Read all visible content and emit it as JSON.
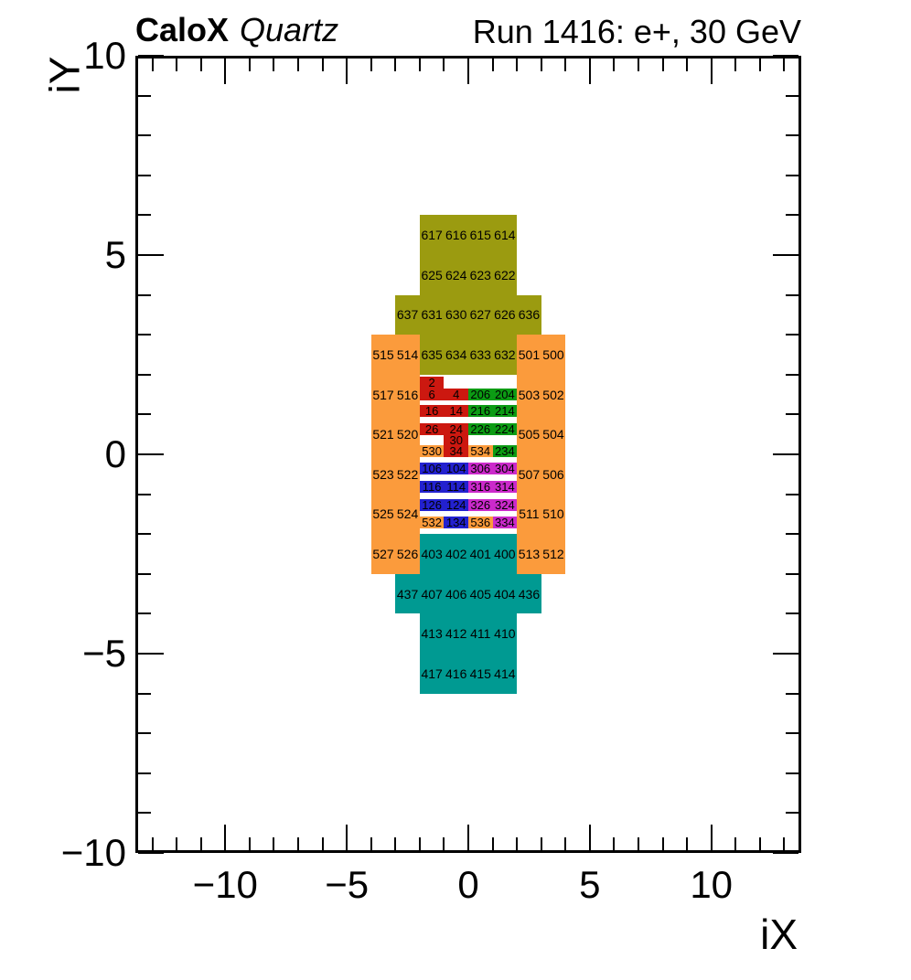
{
  "header": {
    "experiment": "CaloX",
    "detector": "Quartz",
    "run": "Run 1416: e+, 30 GeV"
  },
  "axes": {
    "x_label": "iX",
    "y_label": "iY"
  },
  "chart_data": {
    "type": "heatmap",
    "title": "CaloX Quartz — Run 1416: e+, 30 GeV",
    "xlabel": "iX",
    "ylabel": "iY",
    "xlim": [
      -13.7,
      13.7
    ],
    "ylim": [
      -10,
      10
    ],
    "x_ticks": [
      -10,
      -5,
      0,
      5,
      10
    ],
    "x_tick_labels": [
      "−10",
      "−5",
      "0",
      "5",
      "10"
    ],
    "y_ticks": [
      -10,
      -5,
      0,
      5,
      10
    ],
    "y_tick_labels": [
      "−10",
      "−5",
      "0",
      "5",
      "10"
    ],
    "minor_tick_step": 1,
    "grid": false,
    "palette": {
      "olive": "#9b9b10",
      "orange": "#fb9b3c",
      "teal": "#009a92",
      "red": "#cc1810",
      "green": "#0c9b14",
      "blue": "#2321cf",
      "magenta": "#cb2acb"
    },
    "blocks": [
      {
        "c": "olive",
        "x1": -2,
        "x2": 2,
        "y1": 4,
        "y2": 6
      },
      {
        "c": "olive",
        "x1": -3,
        "x2": 3,
        "y1": 3,
        "y2": 4
      },
      {
        "c": "olive",
        "x1": -2,
        "x2": 2,
        "y1": 2,
        "y2": 3
      },
      {
        "c": "orange",
        "x1": -4,
        "x2": -2,
        "y1": -3,
        "y2": 3
      },
      {
        "c": "orange",
        "x1": 2,
        "x2": 4,
        "y1": -3,
        "y2": 3
      },
      {
        "c": "teal",
        "x1": -2,
        "x2": 2,
        "y1": -3,
        "y2": -2
      },
      {
        "c": "teal",
        "x1": -3,
        "x2": 3,
        "y1": -4,
        "y2": -3
      },
      {
        "c": "teal",
        "x1": -2,
        "x2": 2,
        "y1": -6,
        "y2": -4
      }
    ],
    "block_labels": [
      {
        "x": -1.5,
        "y": 5.5,
        "t": "617"
      },
      {
        "x": -0.5,
        "y": 5.5,
        "t": "616"
      },
      {
        "x": 0.5,
        "y": 5.5,
        "t": "615"
      },
      {
        "x": 1.5,
        "y": 5.5,
        "t": "614"
      },
      {
        "x": -1.5,
        "y": 4.5,
        "t": "625"
      },
      {
        "x": -0.5,
        "y": 4.5,
        "t": "624"
      },
      {
        "x": 0.5,
        "y": 4.5,
        "t": "623"
      },
      {
        "x": 1.5,
        "y": 4.5,
        "t": "622"
      },
      {
        "x": -2.5,
        "y": 3.5,
        "t": "637"
      },
      {
        "x": -1.5,
        "y": 3.5,
        "t": "631"
      },
      {
        "x": -0.5,
        "y": 3.5,
        "t": "630"
      },
      {
        "x": 0.5,
        "y": 3.5,
        "t": "627"
      },
      {
        "x": 1.5,
        "y": 3.5,
        "t": "626"
      },
      {
        "x": 2.5,
        "y": 3.5,
        "t": "636"
      },
      {
        "x": -3.5,
        "y": 2.5,
        "t": "515"
      },
      {
        "x": -2.5,
        "y": 2.5,
        "t": "514"
      },
      {
        "x": -1.5,
        "y": 2.5,
        "t": "635"
      },
      {
        "x": -0.5,
        "y": 2.5,
        "t": "634"
      },
      {
        "x": 0.5,
        "y": 2.5,
        "t": "633"
      },
      {
        "x": 1.5,
        "y": 2.5,
        "t": "632"
      },
      {
        "x": 2.5,
        "y": 2.5,
        "t": "501"
      },
      {
        "x": 3.5,
        "y": 2.5,
        "t": "500"
      },
      {
        "x": -3.5,
        "y": 1.5,
        "t": "517"
      },
      {
        "x": -2.5,
        "y": 1.5,
        "t": "516"
      },
      {
        "x": 2.5,
        "y": 1.5,
        "t": "503"
      },
      {
        "x": 3.5,
        "y": 1.5,
        "t": "502"
      },
      {
        "x": -3.5,
        "y": 0.5,
        "t": "521"
      },
      {
        "x": -2.5,
        "y": 0.5,
        "t": "520"
      },
      {
        "x": 2.5,
        "y": 0.5,
        "t": "505"
      },
      {
        "x": 3.5,
        "y": 0.5,
        "t": "504"
      },
      {
        "x": -3.5,
        "y": -0.5,
        "t": "523"
      },
      {
        "x": -2.5,
        "y": -0.5,
        "t": "522"
      },
      {
        "x": 2.5,
        "y": -0.5,
        "t": "507"
      },
      {
        "x": 3.5,
        "y": -0.5,
        "t": "506"
      },
      {
        "x": -3.5,
        "y": -1.5,
        "t": "525"
      },
      {
        "x": -2.5,
        "y": -1.5,
        "t": "524"
      },
      {
        "x": 2.5,
        "y": -1.5,
        "t": "511"
      },
      {
        "x": 3.5,
        "y": -1.5,
        "t": "510"
      },
      {
        "x": -3.5,
        "y": -2.5,
        "t": "527"
      },
      {
        "x": -2.5,
        "y": -2.5,
        "t": "526"
      },
      {
        "x": -1.5,
        "y": -2.5,
        "t": "403"
      },
      {
        "x": -0.5,
        "y": -2.5,
        "t": "402"
      },
      {
        "x": 0.5,
        "y": -2.5,
        "t": "401"
      },
      {
        "x": 1.5,
        "y": -2.5,
        "t": "400"
      },
      {
        "x": 2.5,
        "y": -2.5,
        "t": "513"
      },
      {
        "x": 3.5,
        "y": -2.5,
        "t": "512"
      },
      {
        "x": -2.5,
        "y": -3.5,
        "t": "437"
      },
      {
        "x": -1.5,
        "y": -3.5,
        "t": "407"
      },
      {
        "x": -0.5,
        "y": -3.5,
        "t": "406"
      },
      {
        "x": 0.5,
        "y": -3.5,
        "t": "405"
      },
      {
        "x": 1.5,
        "y": -3.5,
        "t": "404"
      },
      {
        "x": 2.5,
        "y": -3.5,
        "t": "436"
      },
      {
        "x": -1.5,
        "y": -4.5,
        "t": "413"
      },
      {
        "x": -0.5,
        "y": -4.5,
        "t": "412"
      },
      {
        "x": 0.5,
        "y": -4.5,
        "t": "411"
      },
      {
        "x": 1.5,
        "y": -4.5,
        "t": "410"
      },
      {
        "x": -1.5,
        "y": -5.5,
        "t": "417"
      },
      {
        "x": -0.5,
        "y": -5.5,
        "t": "416"
      },
      {
        "x": 0.5,
        "y": -5.5,
        "t": "415"
      },
      {
        "x": 1.5,
        "y": -5.5,
        "t": "414"
      }
    ],
    "cells": [
      {
        "x1": -2,
        "x2": -1,
        "y1": 1.66,
        "y2": 1.96,
        "c": "red",
        "t": "2"
      },
      {
        "x1": -2,
        "x2": -1,
        "y1": 1.36,
        "y2": 1.66,
        "c": "red",
        "t": "6"
      },
      {
        "x1": -1,
        "x2": 0,
        "y1": 1.36,
        "y2": 1.66,
        "c": "red",
        "t": "4"
      },
      {
        "x1": 0,
        "x2": 1,
        "y1": 1.36,
        "y2": 1.66,
        "c": "green",
        "t": "206"
      },
      {
        "x1": 1,
        "x2": 2,
        "y1": 1.36,
        "y2": 1.66,
        "c": "green",
        "t": "204"
      },
      {
        "x1": -2,
        "x2": -1,
        "y1": 0.94,
        "y2": 1.23,
        "c": "red",
        "t": "16"
      },
      {
        "x1": -1,
        "x2": 0,
        "y1": 0.94,
        "y2": 1.23,
        "c": "red",
        "t": "14"
      },
      {
        "x1": 0,
        "x2": 1,
        "y1": 0.94,
        "y2": 1.23,
        "c": "green",
        "t": "216"
      },
      {
        "x1": 1,
        "x2": 2,
        "y1": 0.94,
        "y2": 1.23,
        "c": "green",
        "t": "214"
      },
      {
        "x1": -2,
        "x2": -1,
        "y1": 0.49,
        "y2": 0.79,
        "c": "red",
        "t": "26"
      },
      {
        "x1": -1,
        "x2": 0,
        "y1": 0.49,
        "y2": 0.79,
        "c": "red",
        "t": "24"
      },
      {
        "x1": 0,
        "x2": 1,
        "y1": 0.49,
        "y2": 0.79,
        "c": "green",
        "t": "226"
      },
      {
        "x1": 1,
        "x2": 2,
        "y1": 0.49,
        "y2": 0.79,
        "c": "green",
        "t": "224"
      },
      {
        "x1": -1,
        "x2": 0,
        "y1": 0.22,
        "y2": 0.49,
        "c": "red",
        "t": "30"
      },
      {
        "x1": -2,
        "x2": -1,
        "y1": -0.06,
        "y2": 0.22,
        "c": "orange",
        "t": "530"
      },
      {
        "x1": -1,
        "x2": 0,
        "y1": -0.06,
        "y2": 0.22,
        "c": "red",
        "t": "34"
      },
      {
        "x1": 0,
        "x2": 1,
        "y1": -0.06,
        "y2": 0.22,
        "c": "orange",
        "t": "534"
      },
      {
        "x1": 1,
        "x2": 2,
        "y1": -0.06,
        "y2": 0.22,
        "c": "green",
        "t": "234"
      },
      {
        "x1": -2,
        "x2": -1,
        "y1": -0.51,
        "y2": -0.21,
        "c": "blue",
        "t": "106"
      },
      {
        "x1": -1,
        "x2": 0,
        "y1": -0.51,
        "y2": -0.21,
        "c": "blue",
        "t": "104"
      },
      {
        "x1": 0,
        "x2": 1,
        "y1": -0.51,
        "y2": -0.21,
        "c": "magenta",
        "t": "306"
      },
      {
        "x1": 1,
        "x2": 2,
        "y1": -0.51,
        "y2": -0.21,
        "c": "magenta",
        "t": "304"
      },
      {
        "x1": -2,
        "x2": -1,
        "y1": -0.96,
        "y2": -0.66,
        "c": "blue",
        "t": "116"
      },
      {
        "x1": -1,
        "x2": 0,
        "y1": -0.96,
        "y2": -0.66,
        "c": "blue",
        "t": "114"
      },
      {
        "x1": 0,
        "x2": 1,
        "y1": -0.96,
        "y2": -0.66,
        "c": "magenta",
        "t": "316"
      },
      {
        "x1": 1,
        "x2": 2,
        "y1": -0.96,
        "y2": -0.66,
        "c": "magenta",
        "t": "314"
      },
      {
        "x1": -2,
        "x2": -1,
        "y1": -1.42,
        "y2": -1.12,
        "c": "blue",
        "t": "126"
      },
      {
        "x1": -1,
        "x2": 0,
        "y1": -1.42,
        "y2": -1.12,
        "c": "blue",
        "t": "124"
      },
      {
        "x1": 0,
        "x2": 1,
        "y1": -1.42,
        "y2": -1.12,
        "c": "magenta",
        "t": "326"
      },
      {
        "x1": 1,
        "x2": 2,
        "y1": -1.42,
        "y2": -1.12,
        "c": "magenta",
        "t": "324"
      },
      {
        "x1": -2,
        "x2": -1,
        "y1": -1.86,
        "y2": -1.57,
        "c": "orange",
        "t": "532"
      },
      {
        "x1": -1,
        "x2": 0,
        "y1": -1.86,
        "y2": -1.57,
        "c": "blue",
        "t": "134"
      },
      {
        "x1": 0,
        "x2": 1,
        "y1": -1.86,
        "y2": -1.57,
        "c": "orange",
        "t": "536"
      },
      {
        "x1": 1,
        "x2": 2,
        "y1": -1.86,
        "y2": -1.57,
        "c": "magenta",
        "t": "334"
      }
    ]
  }
}
